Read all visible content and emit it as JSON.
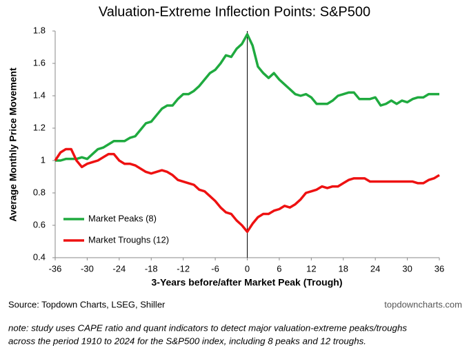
{
  "chart_data": {
    "type": "line",
    "title": "Valuation-Extreme Inflection Points: S&P500",
    "x_label": "3-Years before/after Market Peak (Trough)",
    "y_label": "Average Monthly Price Movement",
    "source": "Source: Topdown Charts, LSEG, Shiller",
    "credit": "topdowncharts.com",
    "note": [
      "note: study uses CAPE ratio and quant indicators to detect major valuation-extreme peaks/troughs",
      "across the period 1910 to 2024 for the S&P500 index, including 8 peaks and 12 troughs."
    ],
    "x": [
      -36,
      -35,
      -34,
      -33,
      -32,
      -31,
      -30,
      -29,
      -28,
      -27,
      -26,
      -25,
      -24,
      -23,
      -22,
      -21,
      -20,
      -19,
      -18,
      -17,
      -16,
      -15,
      -14,
      -13,
      -12,
      -11,
      -10,
      -9,
      -8,
      -7,
      -6,
      -5,
      -4,
      -3,
      -2,
      -1,
      0,
      1,
      2,
      3,
      4,
      5,
      6,
      7,
      8,
      9,
      10,
      11,
      12,
      13,
      14,
      15,
      16,
      17,
      18,
      19,
      20,
      21,
      22,
      23,
      24,
      25,
      26,
      27,
      28,
      29,
      30,
      31,
      32,
      33,
      34,
      35,
      36
    ],
    "series": [
      {
        "name": "Market Peaks (8)",
        "color": "#1faa3f",
        "values": [
          1.0,
          1.0,
          1.01,
          1.01,
          1.01,
          1.02,
          1.01,
          1.04,
          1.07,
          1.08,
          1.1,
          1.12,
          1.12,
          1.12,
          1.14,
          1.15,
          1.19,
          1.23,
          1.24,
          1.28,
          1.32,
          1.34,
          1.34,
          1.38,
          1.41,
          1.41,
          1.43,
          1.46,
          1.5,
          1.54,
          1.56,
          1.6,
          1.65,
          1.64,
          1.69,
          1.72,
          1.78,
          1.71,
          1.58,
          1.54,
          1.51,
          1.54,
          1.5,
          1.47,
          1.44,
          1.41,
          1.4,
          1.41,
          1.39,
          1.35,
          1.35,
          1.35,
          1.37,
          1.4,
          1.41,
          1.42,
          1.42,
          1.38,
          1.38,
          1.38,
          1.39,
          1.34,
          1.35,
          1.37,
          1.35,
          1.37,
          1.36,
          1.38,
          1.39,
          1.39,
          1.41,
          1.41,
          1.41
        ]
      },
      {
        "name": "Market Troughs (12)",
        "color": "#ee1111",
        "values": [
          1.0,
          1.05,
          1.07,
          1.07,
          1.0,
          0.96,
          0.98,
          0.99,
          1.0,
          1.02,
          1.04,
          1.04,
          1.0,
          0.98,
          0.98,
          0.97,
          0.95,
          0.93,
          0.92,
          0.93,
          0.94,
          0.93,
          0.91,
          0.88,
          0.87,
          0.86,
          0.85,
          0.82,
          0.81,
          0.78,
          0.75,
          0.71,
          0.68,
          0.67,
          0.63,
          0.6,
          0.56,
          0.61,
          0.65,
          0.67,
          0.67,
          0.69,
          0.7,
          0.72,
          0.71,
          0.73,
          0.76,
          0.8,
          0.81,
          0.82,
          0.84,
          0.83,
          0.84,
          0.84,
          0.86,
          0.88,
          0.89,
          0.89,
          0.89,
          0.87,
          0.87,
          0.87,
          0.87,
          0.87,
          0.87,
          0.87,
          0.87,
          0.87,
          0.86,
          0.86,
          0.88,
          0.89,
          0.91
        ]
      }
    ],
    "xlim": [
      -36,
      36
    ],
    "xticks": [
      -36,
      -30,
      -24,
      -18,
      -12,
      -6,
      0,
      6,
      12,
      18,
      24,
      30,
      36
    ],
    "ylim": [
      0.4,
      1.8
    ],
    "yticks": [
      0.4,
      0.6,
      0.8,
      1,
      1.2,
      1.4,
      1.6,
      1.8
    ],
    "vline": 0,
    "legend": "lower left",
    "grid": false
  }
}
